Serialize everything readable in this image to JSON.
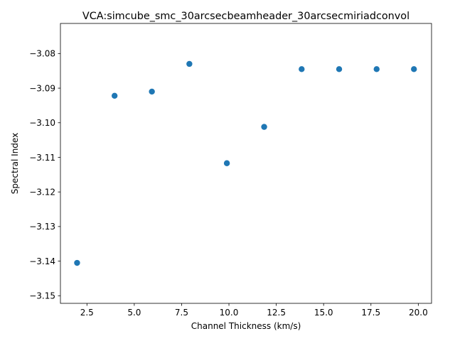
{
  "chart_data": {
    "type": "scatter",
    "title": "VCA:simcube_smc_30arcsecbeamheader_30arcsecmiriadconvol",
    "xlabel": "Channel Thickness (km/s)",
    "ylabel": "Spectral Index",
    "xlim": [
      1.1,
      20.7
    ],
    "ylim": [
      -3.1522,
      -3.0713
    ],
    "x_ticks": [
      2.5,
      5.0,
      7.5,
      10.0,
      12.5,
      15.0,
      17.5,
      20.0
    ],
    "x_tick_labels": [
      "2.5",
      "5.0",
      "7.5",
      "10.0",
      "12.5",
      "15.0",
      "17.5",
      "20.0"
    ],
    "y_ticks": [
      -3.15,
      -3.14,
      -3.13,
      -3.12,
      -3.11,
      -3.1,
      -3.09,
      -3.08
    ],
    "y_tick_labels": [
      "−3.15",
      "−3.14",
      "−3.13",
      "−3.12",
      "−3.11",
      "−3.10",
      "−3.09",
      "−3.08"
    ],
    "grid": false,
    "marker_color": "#1f77b4",
    "points": [
      {
        "x": 1.98,
        "y": -3.1405
      },
      {
        "x": 3.96,
        "y": -3.0922
      },
      {
        "x": 5.93,
        "y": -3.091
      },
      {
        "x": 7.91,
        "y": -3.083
      },
      {
        "x": 9.89,
        "y": -3.1117
      },
      {
        "x": 11.86,
        "y": -3.1012
      },
      {
        "x": 13.84,
        "y": -3.0845
      },
      {
        "x": 15.82,
        "y": -3.0845
      },
      {
        "x": 17.8,
        "y": -3.0845
      },
      {
        "x": 19.77,
        "y": -3.0845
      }
    ]
  }
}
